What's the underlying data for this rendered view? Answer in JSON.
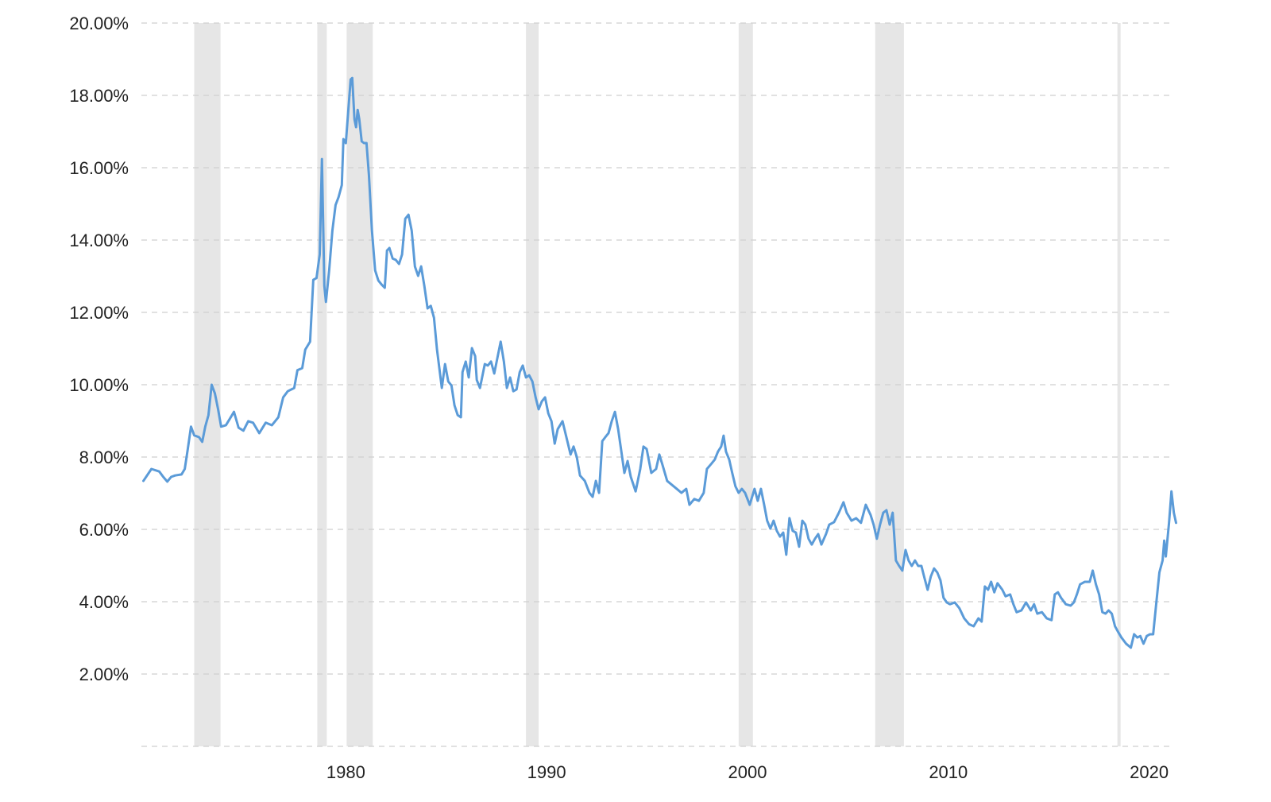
{
  "chart_data": {
    "type": "line",
    "xlim": [
      1969.9,
      2021.4
    ],
    "ylim": [
      0,
      20
    ],
    "xticks": [
      1980,
      1990,
      2000,
      2010,
      2020
    ],
    "yticks": [
      {
        "value": 2,
        "label": "2.00%"
      },
      {
        "value": 4,
        "label": "4.00%"
      },
      {
        "value": 6,
        "label": "6.00%"
      },
      {
        "value": 8,
        "label": "8.00%"
      },
      {
        "value": 10,
        "label": "10.00%"
      },
      {
        "value": 12,
        "label": "12.00%"
      },
      {
        "value": 14,
        "label": "14.00%"
      },
      {
        "value": 16,
        "label": "16.00%"
      },
      {
        "value": 18,
        "label": "18.00%"
      },
      {
        "value": 20,
        "label": "20.00%"
      }
    ],
    "grid": true,
    "recessions": [
      [
        1972.45,
        1973.76
      ],
      [
        1978.58,
        1979.05
      ],
      [
        1980.04,
        1981.34
      ],
      [
        1988.97,
        1989.6
      ],
      [
        1999.56,
        2000.27
      ],
      [
        2006.36,
        2007.79
      ],
      [
        2018.42,
        2018.58
      ]
    ],
    "recession_color": "#e6e6e6",
    "x": [
      1969.92,
      1970.32,
      1970.71,
      1970.91,
      1971.11,
      1971.3,
      1971.5,
      1971.82,
      1971.98,
      1972.13,
      1972.29,
      1972.45,
      1972.69,
      1972.85,
      1973.0,
      1973.16,
      1973.32,
      1973.48,
      1973.64,
      1973.79,
      1974.03,
      1974.27,
      1974.43,
      1974.66,
      1974.9,
      1975.14,
      1975.38,
      1975.69,
      1976.01,
      1976.32,
      1976.64,
      1976.88,
      1977.11,
      1977.43,
      1977.59,
      1977.83,
      1977.98,
      1978.22,
      1978.38,
      1978.54,
      1978.7,
      1978.81,
      1978.93,
      1979.01,
      1979.17,
      1979.33,
      1979.49,
      1979.64,
      1979.8,
      1979.88,
      1980.0,
      1980.12,
      1980.24,
      1980.32,
      1980.43,
      1980.51,
      1980.59,
      1980.67,
      1980.79,
      1980.91,
      1981.03,
      1981.15,
      1981.3,
      1981.46,
      1981.62,
      1981.78,
      1981.94,
      1982.05,
      1982.17,
      1982.33,
      1982.49,
      1982.65,
      1982.8,
      1982.96,
      1983.12,
      1983.28,
      1983.44,
      1983.6,
      1983.75,
      1983.91,
      1984.07,
      1984.23,
      1984.39,
      1984.54,
      1984.78,
      1984.94,
      1985.1,
      1985.26,
      1985.41,
      1985.57,
      1985.73,
      1985.81,
      1985.97,
      1986.12,
      1986.28,
      1986.44,
      1986.52,
      1986.68,
      1986.92,
      1987.07,
      1987.23,
      1987.39,
      1987.55,
      1987.71,
      1987.87,
      1988.02,
      1988.18,
      1988.34,
      1988.5,
      1988.66,
      1988.81,
      1988.97,
      1989.13,
      1989.29,
      1989.45,
      1989.6,
      1989.76,
      1989.92,
      1990.08,
      1990.24,
      1990.4,
      1990.55,
      1990.79,
      1991.03,
      1991.19,
      1991.34,
      1991.5,
      1991.66,
      1991.9,
      1992.13,
      1992.29,
      1992.45,
      1992.61,
      1992.77,
      1992.92,
      1993.08,
      1993.24,
      1993.4,
      1993.56,
      1993.72,
      1993.87,
      1994.03,
      1994.19,
      1994.43,
      1994.66,
      1994.82,
      1994.98,
      1995.21,
      1995.45,
      1995.61,
      1995.77,
      1996.0,
      1996.24,
      1996.48,
      1996.71,
      1996.95,
      1997.11,
      1997.35,
      1997.58,
      1997.82,
      1997.98,
      1998.21,
      1998.37,
      1998.53,
      1998.69,
      1998.81,
      1998.93,
      1999.09,
      1999.24,
      1999.4,
      1999.56,
      1999.72,
      1999.88,
      2000.11,
      2000.35,
      2000.51,
      2000.67,
      2000.83,
      2000.98,
      2001.14,
      2001.3,
      2001.46,
      2001.62,
      2001.78,
      2001.93,
      2002.09,
      2002.25,
      2002.41,
      2002.57,
      2002.73,
      2002.88,
      2003.04,
      2003.2,
      2003.36,
      2003.52,
      2003.68,
      2003.91,
      2004.07,
      2004.31,
      2004.55,
      2004.78,
      2004.94,
      2005.18,
      2005.41,
      2005.65,
      2005.89,
      2006.13,
      2006.28,
      2006.44,
      2006.6,
      2006.76,
      2006.92,
      2007.08,
      2007.23,
      2007.39,
      2007.55,
      2007.71,
      2007.87,
      2008.02,
      2008.18,
      2008.34,
      2008.5,
      2008.66,
      2008.82,
      2008.97,
      2009.13,
      2009.29,
      2009.45,
      2009.61,
      2009.76,
      2009.92,
      2010.08,
      2010.32,
      2010.55,
      2010.79,
      2011.03,
      2011.26,
      2011.5,
      2011.66,
      2011.82,
      2011.98,
      2012.13,
      2012.29,
      2012.45,
      2012.69,
      2012.85,
      2013.08,
      2013.24,
      2013.4,
      2013.64,
      2013.87,
      2014.11,
      2014.27,
      2014.43,
      2014.66,
      2014.9,
      2015.14,
      2015.3,
      2015.46,
      2015.61,
      2015.85,
      2016.09,
      2016.25,
      2016.4,
      2016.56,
      2016.8,
      2017.04,
      2017.19,
      2017.35,
      2017.51,
      2017.67,
      2017.83,
      2017.98,
      2018.14,
      2018.3,
      2018.46,
      2018.62,
      2018.85,
      2019.09,
      2019.25,
      2019.41,
      2019.56,
      2019.72,
      2019.88,
      2020.04,
      2020.2,
      2020.35,
      2020.51,
      2020.67,
      2020.75,
      2020.83,
      2020.99,
      2021.11,
      2021.23,
      2021.34
    ],
    "series": [
      {
        "color": "#5b9bd8",
        "values": [
          7.34,
          7.67,
          7.6,
          7.45,
          7.32,
          7.45,
          7.49,
          7.52,
          7.67,
          8.22,
          8.84,
          8.6,
          8.55,
          8.42,
          8.84,
          9.16,
          10.0,
          9.76,
          9.32,
          8.84,
          8.88,
          9.1,
          9.25,
          8.81,
          8.73,
          8.99,
          8.95,
          8.66,
          8.95,
          8.88,
          9.1,
          9.65,
          9.82,
          9.91,
          10.4,
          10.46,
          10.97,
          11.19,
          12.9,
          12.95,
          13.6,
          16.24,
          12.73,
          12.29,
          13.16,
          14.26,
          14.97,
          15.19,
          15.52,
          16.79,
          16.68,
          17.56,
          18.44,
          18.48,
          17.34,
          17.12,
          17.6,
          17.34,
          16.73,
          16.68,
          16.68,
          15.8,
          14.26,
          13.16,
          12.88,
          12.77,
          12.68,
          13.71,
          13.78,
          13.49,
          13.45,
          13.34,
          13.6,
          14.59,
          14.7,
          14.26,
          13.27,
          13.01,
          13.27,
          12.73,
          12.11,
          12.18,
          11.85,
          10.97,
          9.91,
          10.57,
          10.09,
          9.98,
          9.43,
          9.16,
          9.1,
          10.35,
          10.64,
          10.2,
          11.01,
          10.79,
          10.13,
          9.91,
          10.57,
          10.53,
          10.64,
          10.31,
          10.75,
          11.19,
          10.64,
          9.91,
          10.2,
          9.82,
          9.87,
          10.35,
          10.53,
          10.2,
          10.26,
          10.09,
          9.65,
          9.32,
          9.54,
          9.65,
          9.21,
          8.99,
          8.37,
          8.77,
          8.99,
          8.44,
          8.07,
          8.29,
          8.0,
          7.49,
          7.34,
          7.01,
          6.9,
          7.34,
          7.01,
          8.44,
          8.55,
          8.66,
          8.99,
          9.25,
          8.77,
          8.15,
          7.56,
          7.89,
          7.45,
          7.05,
          7.67,
          8.29,
          8.22,
          7.56,
          7.67,
          8.07,
          7.78,
          7.34,
          7.23,
          7.12,
          7.01,
          7.12,
          6.68,
          6.84,
          6.79,
          7.01,
          7.67,
          7.82,
          7.93,
          8.15,
          8.29,
          8.59,
          8.15,
          7.93,
          7.56,
          7.19,
          7.01,
          7.12,
          7.01,
          6.68,
          7.12,
          6.79,
          7.12,
          6.68,
          6.24,
          6.02,
          6.24,
          5.96,
          5.8,
          5.91,
          5.3,
          6.31,
          5.96,
          5.91,
          5.52,
          6.24,
          6.13,
          5.74,
          5.58,
          5.74,
          5.87,
          5.58,
          5.87,
          6.13,
          6.2,
          6.46,
          6.75,
          6.46,
          6.24,
          6.31,
          6.18,
          6.68,
          6.4,
          6.13,
          5.74,
          6.13,
          6.46,
          6.53,
          6.13,
          6.46,
          5.14,
          4.99,
          4.86,
          5.43,
          5.14,
          4.99,
          5.14,
          4.99,
          4.99,
          4.64,
          4.33,
          4.7,
          4.92,
          4.81,
          4.59,
          4.11,
          3.98,
          3.93,
          3.98,
          3.82,
          3.54,
          3.38,
          3.32,
          3.54,
          3.45,
          4.42,
          4.33,
          4.55,
          4.26,
          4.51,
          4.33,
          4.15,
          4.2,
          3.93,
          3.71,
          3.76,
          3.98,
          3.76,
          3.93,
          3.67,
          3.71,
          3.54,
          3.49,
          4.2,
          4.26,
          4.11,
          3.93,
          3.89,
          3.98,
          4.2,
          4.48,
          4.55,
          4.55,
          4.86,
          4.48,
          4.2,
          3.71,
          3.67,
          3.76,
          3.67,
          3.32,
          3.16,
          3.01,
          2.84,
          2.73,
          3.1,
          3.01,
          3.05,
          2.84,
          3.05,
          3.1,
          3.1,
          3.93,
          4.81,
          5.14,
          5.69,
          5.25,
          6.18,
          7.05,
          6.46,
          6.18
        ]
      }
    ]
  }
}
